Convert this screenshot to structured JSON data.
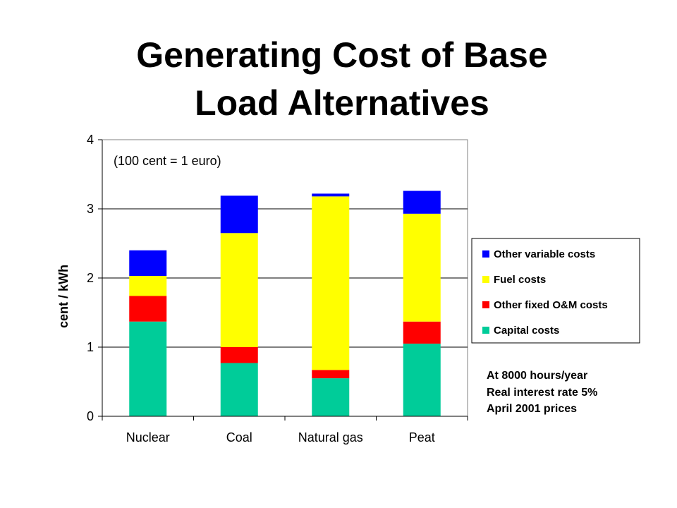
{
  "title": {
    "line1": "Generating Cost of Base",
    "line2": "Load Alternatives"
  },
  "chart_data": {
    "type": "bar",
    "stacked": true,
    "categories": [
      "Nuclear",
      "Coal",
      "Natural gas",
      "Peat"
    ],
    "series": [
      {
        "name": "Capital costs",
        "color": "#00CC99",
        "values": [
          1.37,
          0.77,
          0.55,
          1.05
        ]
      },
      {
        "name": "Other fixed O&M costs",
        "color": "#FF0000",
        "values": [
          0.37,
          0.23,
          0.12,
          0.32
        ]
      },
      {
        "name": "Fuel costs",
        "color": "#FFFF00",
        "values": [
          0.29,
          1.65,
          2.51,
          1.56
        ]
      },
      {
        "name": "Other variable costs",
        "color": "#0000FF",
        "values": [
          0.37,
          0.54,
          0.04,
          0.33
        ]
      }
    ],
    "xlabel": "",
    "ylabel": "cent / kWh",
    "ylim": [
      0,
      4
    ],
    "yticks": [
      "0",
      "1",
      "2",
      "3",
      "4"
    ],
    "grid": true,
    "legend_position": "right",
    "annotation": "(100 cent = 1 euro)"
  },
  "notes": [
    "At 8000 hours/year",
    "Real interest rate 5%",
    "April 2001 prices"
  ]
}
